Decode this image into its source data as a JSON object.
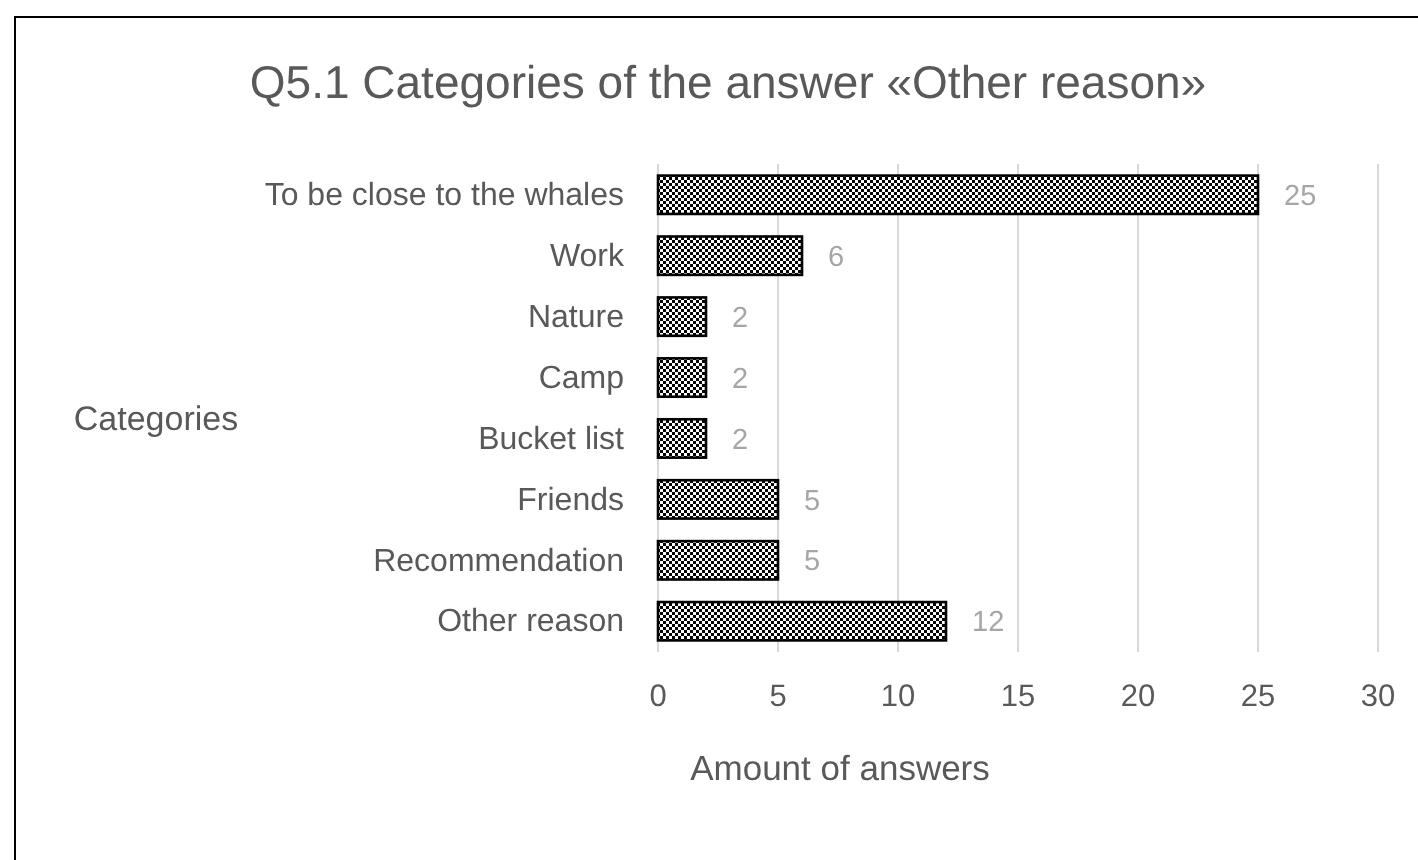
{
  "chart_data": {
    "type": "bar",
    "orientation": "horizontal",
    "title": "Q5.1 Categories of the answer «Other reason»",
    "xlabel": "Amount of answers",
    "ylabel": "Categories",
    "categories": [
      "To be close to the whales",
      "Work",
      "Nature",
      "Camp",
      "Bucket list",
      "Friends",
      "Recommendation",
      "Other reason"
    ],
    "values": [
      25,
      6,
      2,
      2,
      2,
      5,
      5,
      12
    ],
    "color": "#000000",
    "xlim": [
      0,
      30
    ],
    "xticks": [
      0,
      5,
      10,
      15,
      20,
      25,
      30
    ],
    "grid": "x",
    "data_labels": true
  }
}
